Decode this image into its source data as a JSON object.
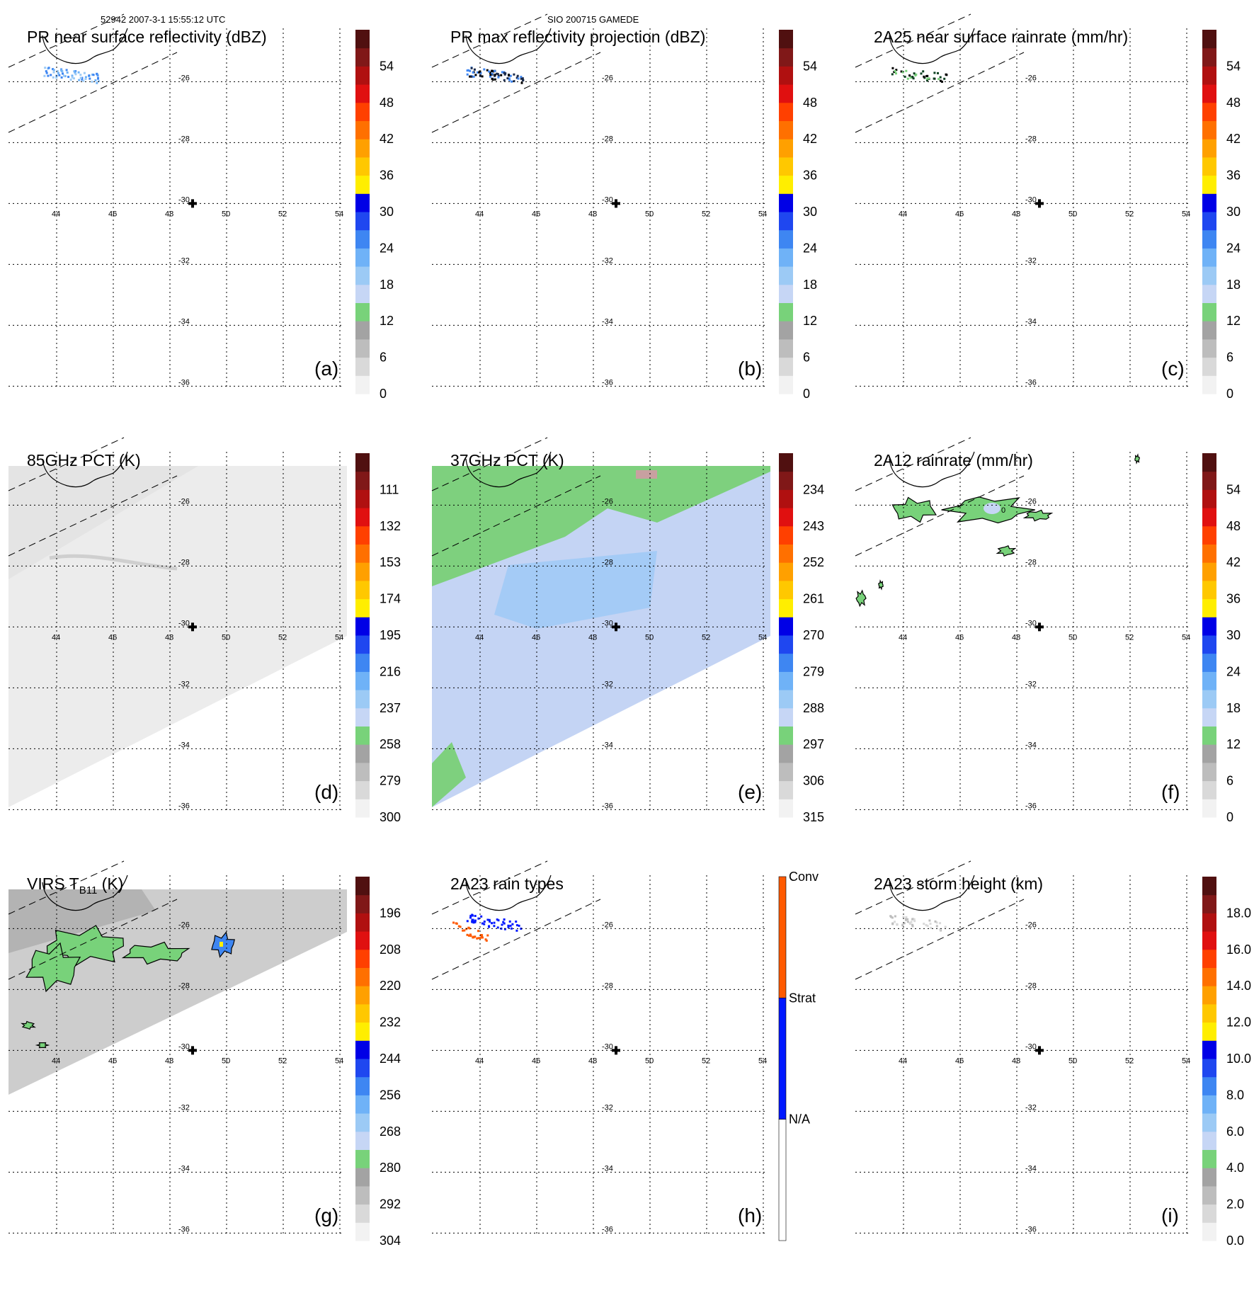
{
  "header": {
    "left": "52942 2007-3-1 15:55:12 UTC",
    "center": "SIO 200715 GAMEDE"
  },
  "chart_data": [
    {
      "id": "a",
      "type": "heatmap",
      "title": "PR near surface reflectivity (dBZ)",
      "label": "(a)",
      "colorbar": {
        "ticks": [
          "0",
          "6",
          "12",
          "18",
          "24",
          "30",
          "36",
          "42",
          "48",
          "54"
        ]
      },
      "lon_ticks": [
        "44",
        "46",
        "48",
        "50",
        "52",
        "54"
      ],
      "lat_ticks": [
        "-26",
        "-28",
        "-30",
        "-32",
        "-34",
        "-36"
      ],
      "center_marker": {
        "lon": 48.8,
        "lat": -30
      }
    },
    {
      "id": "b",
      "type": "heatmap",
      "title": "PR max reflectivity projection (dBZ)",
      "label": "(b)",
      "colorbar": {
        "ticks": [
          "0",
          "6",
          "12",
          "18",
          "24",
          "30",
          "36",
          "42",
          "48",
          "54"
        ]
      },
      "lon_ticks": [
        "44",
        "46",
        "48",
        "50",
        "52",
        "54"
      ],
      "lat_ticks": [
        "-26",
        "-28",
        "-30",
        "-32",
        "-34",
        "-36"
      ],
      "center_marker": {
        "lon": 48.8,
        "lat": -30
      }
    },
    {
      "id": "c",
      "type": "heatmap",
      "title": "2A25 near surface rainrate (mm/hr)",
      "label": "(c)",
      "colorbar": {
        "ticks": [
          "0",
          "6",
          "12",
          "18",
          "24",
          "30",
          "36",
          "42",
          "48",
          "54"
        ]
      },
      "lon_ticks": [
        "44",
        "46",
        "48",
        "50",
        "52",
        "54"
      ],
      "lat_ticks": [
        "-26",
        "-28",
        "-30",
        "-32",
        "-34",
        "-36"
      ],
      "center_marker": {
        "lon": 48.8,
        "lat": -30
      }
    },
    {
      "id": "d",
      "type": "heatmap",
      "title": "85GHz PCT (K)",
      "label": "(d)",
      "colorbar": {
        "ticks": [
          "300",
          "279",
          "258",
          "237",
          "216",
          "195",
          "174",
          "153",
          "132",
          "111"
        ]
      },
      "lon_ticks": [
        "44",
        "46",
        "48",
        "50",
        "52",
        "54"
      ],
      "lat_ticks": [
        "-26",
        "-28",
        "-30",
        "-32",
        "-34",
        "-36"
      ],
      "center_marker": {
        "lon": 48.8,
        "lat": -30
      }
    },
    {
      "id": "e",
      "type": "heatmap",
      "title": "37GHz PCT (K)",
      "label": "(e)",
      "colorbar": {
        "ticks": [
          "315",
          "306",
          "297",
          "288",
          "279",
          "270",
          "261",
          "252",
          "243",
          "234"
        ]
      },
      "lon_ticks": [
        "44",
        "46",
        "48",
        "50",
        "52",
        "54"
      ],
      "lat_ticks": [
        "-26",
        "-28",
        "-30",
        "-32",
        "-34",
        "-36"
      ],
      "center_marker": {
        "lon": 48.8,
        "lat": -30
      }
    },
    {
      "id": "f",
      "type": "heatmap",
      "title": "2A12 rainrate (mm/hr)",
      "label": "(f)",
      "colorbar": {
        "ticks": [
          "0",
          "6",
          "12",
          "18",
          "24",
          "30",
          "36",
          "42",
          "48",
          "54"
        ]
      },
      "lon_ticks": [
        "44",
        "46",
        "48",
        "50",
        "52",
        "54"
      ],
      "lat_ticks": [
        "-26",
        "-28",
        "-30",
        "-32",
        "-34",
        "-36"
      ],
      "center_marker": {
        "lon": 48.8,
        "lat": -30
      },
      "contour_label": "0"
    },
    {
      "id": "g",
      "type": "heatmap",
      "title": "VIRS T",
      "title_sub": "B11",
      "title_suffix": " (K)",
      "label": "(g)",
      "colorbar": {
        "ticks": [
          "304",
          "292",
          "280",
          "268",
          "256",
          "244",
          "232",
          "220",
          "208",
          "196"
        ]
      },
      "lon_ticks": [
        "44",
        "46",
        "48",
        "50",
        "52",
        "54"
      ],
      "lat_ticks": [
        "-26",
        "-28",
        "-30",
        "-32",
        "-34",
        "-36"
      ],
      "center_marker": {
        "lon": 48.8,
        "lat": -30
      }
    },
    {
      "id": "h",
      "type": "heatmap",
      "title": "2A23 rain types",
      "label": "(h)",
      "colorbar": {
        "categories": [
          "N/A",
          "Strat",
          "Conv"
        ],
        "colors": [
          "#ffffff",
          "#0018ff",
          "#ff5a00"
        ]
      },
      "lon_ticks": [
        "44",
        "46",
        "48",
        "50",
        "52",
        "54"
      ],
      "lat_ticks": [
        "-26",
        "-28",
        "-30",
        "-32",
        "-34",
        "-36"
      ],
      "center_marker": {
        "lon": 48.8,
        "lat": -30
      }
    },
    {
      "id": "i",
      "type": "heatmap",
      "title": "2A23 storm height (km)",
      "label": "(i)",
      "colorbar": {
        "ticks": [
          "0.0",
          "2.0",
          "4.0",
          "6.0",
          "8.0",
          "10.0",
          "12.0",
          "14.0",
          "16.0",
          "18.0"
        ]
      },
      "lon_ticks": [
        "44",
        "46",
        "48",
        "50",
        "52",
        "54"
      ],
      "lat_ticks": [
        "-26",
        "-28",
        "-30",
        "-32",
        "-34",
        "-36"
      ],
      "center_marker": {
        "lon": 48.8,
        "lat": -30
      }
    }
  ],
  "colors": {
    "scale": [
      "#f2f2f2",
      "#d9d9d9",
      "#bdbdbd",
      "#a3a3a3",
      "#78d27a",
      "#c6d6f5",
      "#9ccaf5",
      "#6fb2f7",
      "#3e86f2",
      "#1f47f0",
      "#0000e6",
      "#ffee00",
      "#ffc800",
      "#ffa000",
      "#ff7000",
      "#ff4000",
      "#e01010",
      "#b01010",
      "#801818",
      "#501010"
    ]
  }
}
